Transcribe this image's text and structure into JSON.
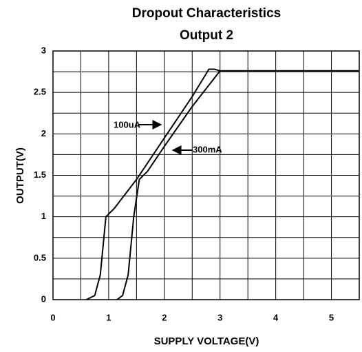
{
  "chart_data": {
    "type": "line",
    "title": "Dropout Characteristics",
    "subtitle": "Output 2",
    "x_label": "SUPPLY VOLTAGE(V)",
    "y_label": "OUTPUT(V)",
    "xlim": [
      0,
      5.5
    ],
    "ylim": [
      0,
      3
    ],
    "xticks": [
      0,
      1,
      2,
      3,
      4,
      5
    ],
    "yticks": [
      0,
      0.5,
      1,
      1.5,
      2,
      2.5,
      3
    ],
    "xgrid": [
      0.5,
      1,
      1.5,
      2,
      2.5,
      3,
      3.5,
      4,
      4.5,
      5
    ],
    "ygrid": [
      0.25,
      0.5,
      0.75,
      1,
      1.25,
      1.5,
      1.75,
      2,
      2.25,
      2.5,
      2.75
    ],
    "grid": true,
    "series": [
      {
        "name": "100uA",
        "color": "#000000",
        "x": [
          0.6,
          0.75,
          0.85,
          0.95,
          1.1,
          1.5,
          2,
          2.5,
          2.8,
          2.9,
          3,
          5.5
        ],
        "values": [
          0,
          0.05,
          0.3,
          1.0,
          1.1,
          1.45,
          1.95,
          2.45,
          2.78,
          2.78,
          2.76,
          2.76
        ]
      },
      {
        "name": "300mA",
        "color": "#000000",
        "x": [
          1.15,
          1.25,
          1.35,
          1.45,
          1.55,
          1.7,
          2,
          2.5,
          3,
          5.5
        ],
        "values": [
          0,
          0.05,
          0.3,
          1.0,
          1.45,
          1.55,
          1.85,
          2.33,
          2.76,
          2.76
        ]
      }
    ]
  }
}
